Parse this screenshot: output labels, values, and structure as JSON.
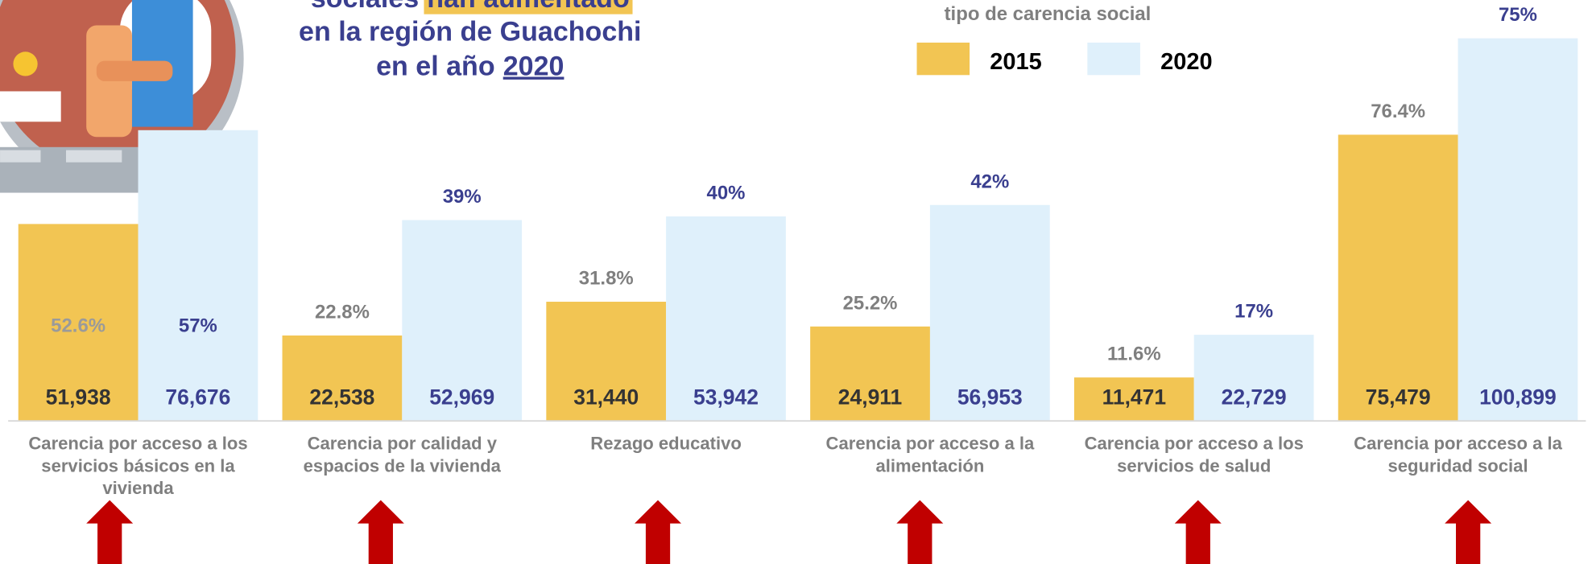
{
  "chart_data": {
    "type": "bar",
    "title_parts": [
      [
        "sociales",
        "han aumentado"
      ],
      [
        "en la región de Guachochi"
      ],
      [
        "en el año",
        "2020"
      ]
    ],
    "legend_title": "tipo de carencia social",
    "categories": [
      "Carencia por acceso a los servicios básicos en la vivienda",
      "Carencia por calidad y espacios de la vivienda",
      "Rezago educativo",
      "Carencia por acceso a la alimentación",
      "Carencia por acceso a los servicios de salud",
      "Carencia por acceso a la seguridad social"
    ],
    "series": [
      {
        "name": "2015",
        "color": "#f2c553",
        "values": [
          51938,
          22538,
          31440,
          24911,
          11471,
          75479
        ],
        "value_labels": [
          "51,938",
          "22,538",
          "31,440",
          "24,911",
          "11,471",
          "75,479"
        ],
        "percent_labels": [
          "52.6%",
          "22.8%",
          "31.8%",
          "25.2%",
          "11.6%",
          "76.4%"
        ]
      },
      {
        "name": "2020",
        "color": "#dff0fb",
        "values": [
          76676,
          52969,
          53942,
          56953,
          22729,
          100899
        ],
        "value_labels": [
          "76,676",
          "52,969",
          "53,942",
          "56,953",
          "22,729",
          "100,899"
        ],
        "percent_labels": [
          "57%",
          "39%",
          "40%",
          "42%",
          "17%",
          "75%"
        ]
      }
    ],
    "ylim": [
      0,
      111000
    ]
  }
}
